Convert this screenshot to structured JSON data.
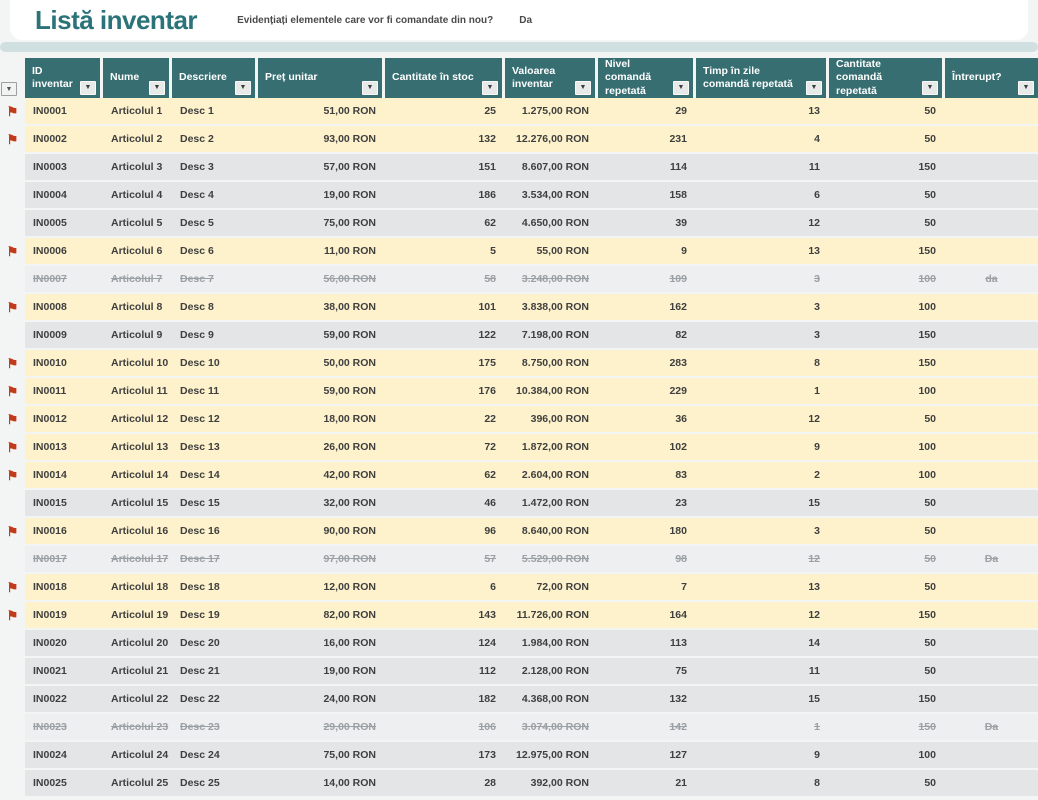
{
  "header": {
    "title": "Listă inventar",
    "question": "Evidențiați elementele care vor fi comandate din nou?",
    "answer": "Da"
  },
  "icons": {
    "filter_arrow": "▼",
    "flag_glyph": "⚑"
  },
  "colors": {
    "title_teal": "#2b7378",
    "header_teal": "#366e71",
    "strip_teal": "#d0e0e1",
    "row_yellow": "#fdf2cb",
    "row_gray": "#e3e5e6",
    "row_struck": "#edeff0",
    "flag_red": "#c13a1b",
    "page_bg": "#f3f4f4"
  },
  "table": {
    "columns": [
      {
        "key": "id",
        "label": "ID inventar",
        "align": "left"
      },
      {
        "key": "nume",
        "label": "Nume",
        "align": "left"
      },
      {
        "key": "descriere",
        "label": "Descriere",
        "align": "left"
      },
      {
        "key": "pret",
        "label": "Preț unitar",
        "align": "right"
      },
      {
        "key": "stoc",
        "label": "Cantitate în stoc",
        "align": "right"
      },
      {
        "key": "valoare",
        "label": "Valoarea inventar",
        "align": "right"
      },
      {
        "key": "nivel",
        "label": "Nivel comandă repetată",
        "align": "right"
      },
      {
        "key": "timp",
        "label": "Timp în zile comandă repetată",
        "align": "right"
      },
      {
        "key": "cantitate",
        "label": "Cantitate comandă repetată",
        "align": "right"
      },
      {
        "key": "intrerupt",
        "label": "Întrerupt?",
        "align": "center"
      }
    ],
    "rows": [
      {
        "flag": true,
        "struck": false,
        "id": "IN0001",
        "nume": "Articolul 1",
        "descriere": "Desc 1",
        "pret": "51,00 RON",
        "stoc": "25",
        "valoare": "1.275,00 RON",
        "nivel": "29",
        "timp": "13",
        "cantitate": "50",
        "intrerupt": ""
      },
      {
        "flag": true,
        "struck": false,
        "id": "IN0002",
        "nume": "Articolul 2",
        "descriere": "Desc 2",
        "pret": "93,00 RON",
        "stoc": "132",
        "valoare": "12.276,00 RON",
        "nivel": "231",
        "timp": "4",
        "cantitate": "50",
        "intrerupt": ""
      },
      {
        "flag": false,
        "struck": false,
        "id": "IN0003",
        "nume": "Articolul 3",
        "descriere": "Desc 3",
        "pret": "57,00 RON",
        "stoc": "151",
        "valoare": "8.607,00 RON",
        "nivel": "114",
        "timp": "11",
        "cantitate": "150",
        "intrerupt": ""
      },
      {
        "flag": false,
        "struck": false,
        "id": "IN0004",
        "nume": "Articolul 4",
        "descriere": "Desc 4",
        "pret": "19,00 RON",
        "stoc": "186",
        "valoare": "3.534,00 RON",
        "nivel": "158",
        "timp": "6",
        "cantitate": "50",
        "intrerupt": ""
      },
      {
        "flag": false,
        "struck": false,
        "id": "IN0005",
        "nume": "Articolul 5",
        "descriere": "Desc 5",
        "pret": "75,00 RON",
        "stoc": "62",
        "valoare": "4.650,00 RON",
        "nivel": "39",
        "timp": "12",
        "cantitate": "50",
        "intrerupt": ""
      },
      {
        "flag": true,
        "struck": false,
        "id": "IN0006",
        "nume": "Articolul 6",
        "descriere": "Desc 6",
        "pret": "11,00 RON",
        "stoc": "5",
        "valoare": "55,00 RON",
        "nivel": "9",
        "timp": "13",
        "cantitate": "150",
        "intrerupt": ""
      },
      {
        "flag": false,
        "struck": true,
        "id": "IN0007",
        "nume": "Articolul 7",
        "descriere": "Desc 7",
        "pret": "56,00 RON",
        "stoc": "58",
        "valoare": "3.248,00 RON",
        "nivel": "109",
        "timp": "3",
        "cantitate": "100",
        "intrerupt": "da"
      },
      {
        "flag": true,
        "struck": false,
        "id": "IN0008",
        "nume": "Articolul 8",
        "descriere": "Desc 8",
        "pret": "38,00 RON",
        "stoc": "101",
        "valoare": "3.838,00 RON",
        "nivel": "162",
        "timp": "3",
        "cantitate": "100",
        "intrerupt": ""
      },
      {
        "flag": false,
        "struck": false,
        "id": "IN0009",
        "nume": "Articolul 9",
        "descriere": "Desc 9",
        "pret": "59,00 RON",
        "stoc": "122",
        "valoare": "7.198,00 RON",
        "nivel": "82",
        "timp": "3",
        "cantitate": "150",
        "intrerupt": ""
      },
      {
        "flag": true,
        "struck": false,
        "id": "IN0010",
        "nume": "Articolul 10",
        "descriere": "Desc 10",
        "pret": "50,00 RON",
        "stoc": "175",
        "valoare": "8.750,00 RON",
        "nivel": "283",
        "timp": "8",
        "cantitate": "150",
        "intrerupt": ""
      },
      {
        "flag": true,
        "struck": false,
        "id": "IN0011",
        "nume": "Articolul 11",
        "descriere": "Desc 11",
        "pret": "59,00 RON",
        "stoc": "176",
        "valoare": "10.384,00 RON",
        "nivel": "229",
        "timp": "1",
        "cantitate": "100",
        "intrerupt": ""
      },
      {
        "flag": true,
        "struck": false,
        "id": "IN0012",
        "nume": "Articolul 12",
        "descriere": "Desc 12",
        "pret": "18,00 RON",
        "stoc": "22",
        "valoare": "396,00 RON",
        "nivel": "36",
        "timp": "12",
        "cantitate": "50",
        "intrerupt": ""
      },
      {
        "flag": true,
        "struck": false,
        "id": "IN0013",
        "nume": "Articolul 13",
        "descriere": "Desc 13",
        "pret": "26,00 RON",
        "stoc": "72",
        "valoare": "1.872,00 RON",
        "nivel": "102",
        "timp": "9",
        "cantitate": "100",
        "intrerupt": ""
      },
      {
        "flag": true,
        "struck": false,
        "id": "IN0014",
        "nume": "Articolul 14",
        "descriere": "Desc 14",
        "pret": "42,00 RON",
        "stoc": "62",
        "valoare": "2.604,00 RON",
        "nivel": "83",
        "timp": "2",
        "cantitate": "100",
        "intrerupt": ""
      },
      {
        "flag": false,
        "struck": false,
        "id": "IN0015",
        "nume": "Articolul 15",
        "descriere": "Desc 15",
        "pret": "32,00 RON",
        "stoc": "46",
        "valoare": "1.472,00 RON",
        "nivel": "23",
        "timp": "15",
        "cantitate": "50",
        "intrerupt": ""
      },
      {
        "flag": true,
        "struck": false,
        "id": "IN0016",
        "nume": "Articolul 16",
        "descriere": "Desc 16",
        "pret": "90,00 RON",
        "stoc": "96",
        "valoare": "8.640,00 RON",
        "nivel": "180",
        "timp": "3",
        "cantitate": "50",
        "intrerupt": ""
      },
      {
        "flag": false,
        "struck": true,
        "id": "IN0017",
        "nume": "Articolul 17",
        "descriere": "Desc 17",
        "pret": "97,00 RON",
        "stoc": "57",
        "valoare": "5.529,00 RON",
        "nivel": "98",
        "timp": "12",
        "cantitate": "50",
        "intrerupt": "Da"
      },
      {
        "flag": true,
        "struck": false,
        "id": "IN0018",
        "nume": "Articolul 18",
        "descriere": "Desc 18",
        "pret": "12,00 RON",
        "stoc": "6",
        "valoare": "72,00 RON",
        "nivel": "7",
        "timp": "13",
        "cantitate": "50",
        "intrerupt": ""
      },
      {
        "flag": true,
        "struck": false,
        "id": "IN0019",
        "nume": "Articolul 19",
        "descriere": "Desc 19",
        "pret": "82,00 RON",
        "stoc": "143",
        "valoare": "11.726,00 RON",
        "nivel": "164",
        "timp": "12",
        "cantitate": "150",
        "intrerupt": ""
      },
      {
        "flag": false,
        "struck": false,
        "id": "IN0020",
        "nume": "Articolul 20",
        "descriere": "Desc 20",
        "pret": "16,00 RON",
        "stoc": "124",
        "valoare": "1.984,00 RON",
        "nivel": "113",
        "timp": "14",
        "cantitate": "50",
        "intrerupt": ""
      },
      {
        "flag": false,
        "struck": false,
        "id": "IN0021",
        "nume": "Articolul 21",
        "descriere": "Desc 21",
        "pret": "19,00 RON",
        "stoc": "112",
        "valoare": "2.128,00 RON",
        "nivel": "75",
        "timp": "11",
        "cantitate": "50",
        "intrerupt": ""
      },
      {
        "flag": false,
        "struck": false,
        "id": "IN0022",
        "nume": "Articolul 22",
        "descriere": "Desc 22",
        "pret": "24,00 RON",
        "stoc": "182",
        "valoare": "4.368,00 RON",
        "nivel": "132",
        "timp": "15",
        "cantitate": "150",
        "intrerupt": ""
      },
      {
        "flag": false,
        "struck": true,
        "id": "IN0023",
        "nume": "Articolul 23",
        "descriere": "Desc 23",
        "pret": "29,00 RON",
        "stoc": "106",
        "valoare": "3.074,00 RON",
        "nivel": "142",
        "timp": "1",
        "cantitate": "150",
        "intrerupt": "Da"
      },
      {
        "flag": false,
        "struck": false,
        "id": "IN0024",
        "nume": "Articolul 24",
        "descriere": "Desc 24",
        "pret": "75,00 RON",
        "stoc": "173",
        "valoare": "12.975,00 RON",
        "nivel": "127",
        "timp": "9",
        "cantitate": "100",
        "intrerupt": ""
      },
      {
        "flag": false,
        "struck": false,
        "id": "IN0025",
        "nume": "Articolul 25",
        "descriere": "Desc 25",
        "pret": "14,00 RON",
        "stoc": "28",
        "valoare": "392,00 RON",
        "nivel": "21",
        "timp": "8",
        "cantitate": "50",
        "intrerupt": ""
      }
    ]
  }
}
